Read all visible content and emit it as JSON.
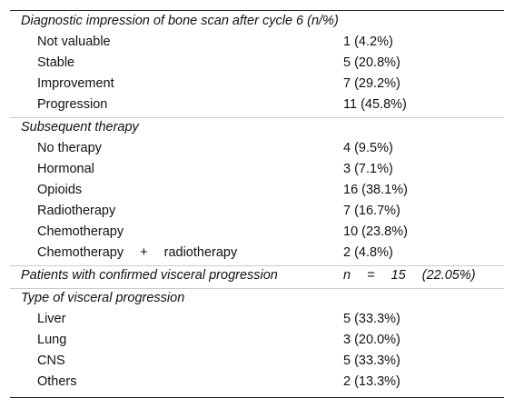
{
  "table": {
    "sections": [
      {
        "title": "Diagnostic impression of bone scan after cycle 6 (n/%)",
        "rows": [
          [
            "Not valuable",
            "1 (4.2%)"
          ],
          [
            "Stable",
            "5 (20.8%)"
          ],
          [
            "Improvement",
            "7 (29.2%)"
          ],
          [
            "Progression",
            "11 (45.8%)"
          ]
        ]
      },
      {
        "title": "Subsequent therapy",
        "rows": [
          [
            "No therapy",
            "4 (9.5%)"
          ],
          [
            "Hormonal",
            "3 (7.1%)"
          ],
          [
            "Opioids",
            "16 (38.1%)"
          ],
          [
            "Radiotherapy",
            "7 (16.7%)"
          ],
          [
            "Chemotherapy",
            "10 (23.8%)"
          ],
          [
            "Chemotherapy + radiotherapy",
            "2 (4.8%)"
          ]
        ]
      },
      {
        "title": "Patients with confirmed visceral progression",
        "value": "n = 15 (22.05%)",
        "rows": []
      },
      {
        "title": "Type of visceral progression",
        "rows": [
          [
            "Liver",
            "5 (33.3%)"
          ],
          [
            "Lung",
            "3 (20.0%)"
          ],
          [
            "CNS",
            "5 (33.3%)"
          ],
          [
            "Others",
            "2 (13.3%)"
          ]
        ]
      }
    ]
  }
}
